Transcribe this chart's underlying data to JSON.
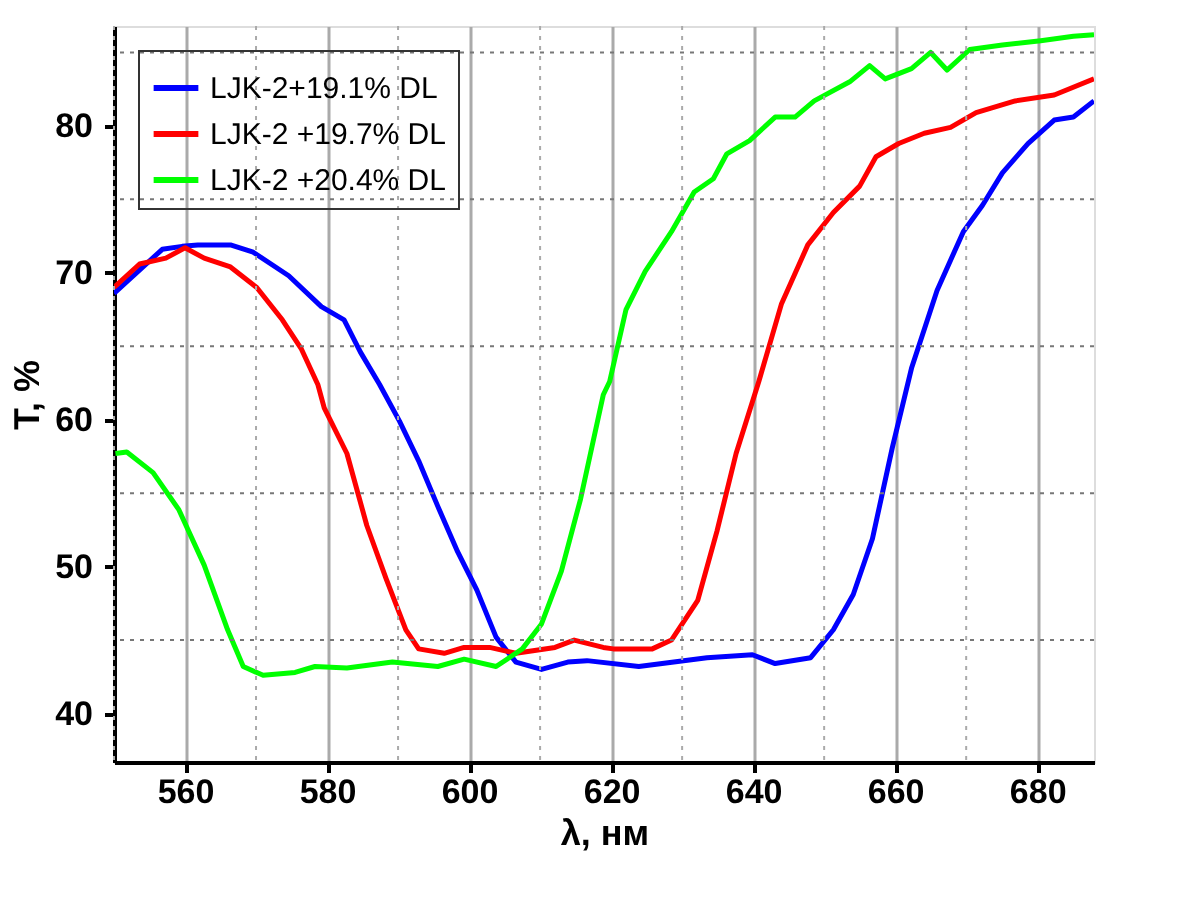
{
  "chart_data": {
    "type": "line",
    "xlabel": "λ, нм",
    "ylabel": "T, %",
    "xlim": [
      550,
      688
    ],
    "ylim": [
      36.7,
      86.8
    ],
    "xticks": [
      560,
      580,
      600,
      620,
      640,
      660,
      680
    ],
    "yticks": [
      40,
      50,
      60,
      70,
      80
    ],
    "grid": true,
    "legend": "top left",
    "line_style": "solid",
    "marker": "none",
    "series": [
      {
        "name": "LJK-2+19.1% DL",
        "color": "#0000ff",
        "x": [
          550,
          556.8,
          559.6,
          561.8,
          566.4,
          569.6,
          574.6,
          579.2,
          582.4,
          584.7,
          587.4,
          590.2,
          592.9,
          595.6,
          598.4,
          601.1,
          603.8,
          606.6,
          610.2,
          613.9,
          616.6,
          623.9,
          633.5,
          639.9,
          643.1,
          648.1,
          651.3,
          654.1,
          656.8,
          659.6,
          662.3,
          665.9,
          669.6,
          672.3,
          675.1,
          678.7,
          682.4,
          685.1,
          688
        ],
        "values": [
          68.6,
          71.6,
          71.8,
          71.9,
          71.9,
          71.4,
          69.8,
          67.7,
          66.8,
          64.6,
          62.4,
          59.9,
          57.2,
          54.1,
          51.0,
          48.4,
          45.2,
          43.5,
          43.0,
          43.5,
          43.6,
          43.2,
          43.8,
          44.0,
          43.4,
          43.8,
          45.7,
          48.1,
          51.9,
          58.1,
          63.5,
          68.8,
          72.8,
          74.6,
          76.8,
          78.8,
          80.4,
          80.6,
          81.7
        ]
      },
      {
        "name": "LJK-2 +19.7% DL",
        "color": "#ff0000",
        "x": [
          550,
          553.6,
          557.3,
          560,
          562.7,
          566.4,
          570.1,
          573.7,
          576.4,
          578.7,
          579.6,
          582.8,
          585.6,
          588.3,
          591.1,
          592.9,
          596.5,
          599.3,
          602.9,
          606.6,
          612.1,
          614.8,
          618.9,
          620.3,
          625.8,
          628.5,
          632.2,
          634.9,
          637.6,
          640.8,
          644.0,
          647.7,
          651.3,
          655,
          657.3,
          660.5,
          664.1,
          667.8,
          671.4,
          676.9,
          682.4,
          688
        ],
        "values": [
          69.0,
          70.6,
          71.0,
          71.7,
          71.0,
          70.4,
          69.0,
          66.8,
          64.8,
          62.4,
          60.8,
          57.7,
          52.8,
          49.2,
          45.7,
          44.4,
          44.1,
          44.5,
          44.5,
          44.1,
          44.5,
          45.0,
          44.5,
          44.4,
          44.4,
          45.0,
          47.7,
          52.4,
          57.7,
          62.6,
          67.9,
          71.9,
          74.1,
          75.9,
          77.9,
          78.8,
          79.5,
          79.9,
          80.9,
          81.7,
          82.1,
          83.2
        ]
      },
      {
        "name": "LJK-2 +20.4% DL",
        "color": "#00ff00",
        "x": [
          550.2,
          551.8,
          555.5,
          559.1,
          562.7,
          566,
          568.2,
          571,
          575.5,
          578.3,
          582.8,
          589.2,
          595.6,
          599.3,
          603.8,
          607.5,
          610.2,
          613,
          615.7,
          618.9,
          619.8,
          622.1,
          624.8,
          628.5,
          631.7,
          634.4,
          636.3,
          639.5,
          643.1,
          645.9,
          648.6,
          653.6,
          656.4,
          658.6,
          662.3,
          665.0,
          667.3,
          670.5,
          675.1,
          680.5,
          685.1,
          688
        ],
        "values": [
          57.7,
          57.8,
          56.4,
          53.9,
          50.1,
          45.7,
          43.2,
          42.6,
          42.8,
          43.2,
          43.1,
          43.5,
          43.2,
          43.7,
          43.2,
          44.4,
          46.1,
          49.7,
          54.6,
          61.7,
          62.6,
          67.5,
          70.1,
          72.8,
          75.5,
          76.4,
          78.1,
          79.0,
          80.6,
          80.6,
          81.7,
          83.0,
          84.1,
          83.2,
          83.9,
          85.0,
          83.8,
          85.2,
          85.5,
          85.8,
          86.1,
          86.2
        ]
      }
    ]
  }
}
